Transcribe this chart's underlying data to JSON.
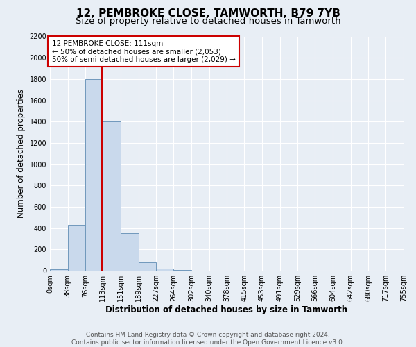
{
  "title": "12, PEMBROKE CLOSE, TAMWORTH, B79 7YB",
  "subtitle": "Size of property relative to detached houses in Tamworth",
  "xlabel": "Distribution of detached houses by size in Tamworth",
  "ylabel": "Number of detached properties",
  "bin_edges": [
    0,
    38,
    76,
    113,
    151,
    189,
    227,
    264,
    302,
    340,
    378,
    415,
    453,
    491,
    529,
    566,
    604,
    642,
    680,
    717,
    755
  ],
  "bin_counts": [
    15,
    430,
    1800,
    1400,
    350,
    75,
    20,
    5,
    0,
    0,
    0,
    0,
    0,
    0,
    0,
    0,
    0,
    0,
    0,
    0
  ],
  "bar_color": "#c9d9ec",
  "bar_edge_color": "#7098bc",
  "property_line_x": 111,
  "property_line_color": "#cc0000",
  "annotation_title": "12 PEMBROKE CLOSE: 111sqm",
  "annotation_line1": "← 50% of detached houses are smaller (2,053)",
  "annotation_line2": "50% of semi-detached houses are larger (2,029) →",
  "annotation_box_color": "#cc0000",
  "ylim": [
    0,
    2200
  ],
  "yticks": [
    0,
    200,
    400,
    600,
    800,
    1000,
    1200,
    1400,
    1600,
    1800,
    2000,
    2200
  ],
  "xtick_labels": [
    "0sqm",
    "38sqm",
    "76sqm",
    "113sqm",
    "151sqm",
    "189sqm",
    "227sqm",
    "264sqm",
    "302sqm",
    "340sqm",
    "378sqm",
    "415sqm",
    "453sqm",
    "491sqm",
    "529sqm",
    "566sqm",
    "604sqm",
    "642sqm",
    "680sqm",
    "717sqm",
    "755sqm"
  ],
  "footer_line1": "Contains HM Land Registry data © Crown copyright and database right 2024.",
  "footer_line2": "Contains public sector information licensed under the Open Government Licence v3.0.",
  "background_color": "#e8eef5",
  "plot_bg_color": "#dce6f0",
  "grid_color": "#ffffff",
  "title_fontsize": 11,
  "subtitle_fontsize": 9.5,
  "axis_label_fontsize": 8.5,
  "tick_fontsize": 7,
  "annotation_fontsize": 7.5,
  "footer_fontsize": 6.5
}
